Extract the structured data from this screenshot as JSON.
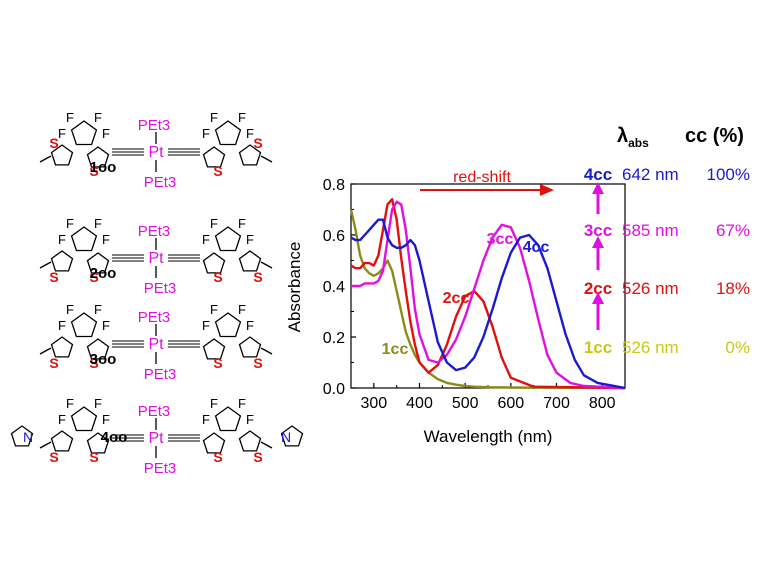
{
  "molecules": [
    {
      "label": "1oo",
      "pet3_top": "PEt3",
      "pet3_bottom": "PEt3",
      "pt": "Pt",
      "s_left": "S",
      "s_right": "S",
      "s_left2": "S",
      "s_right2": "S",
      "f": "F"
    },
    {
      "label": "2oo",
      "pet3_top": "PEt3",
      "pet3_bottom": "PEt3",
      "pt": "Pt",
      "s_left": "S",
      "s_right": "S",
      "s_left2": "S",
      "s_right2": "S",
      "f": "F"
    },
    {
      "label": "3oo",
      "pet3_top": "PEt3",
      "pet3_bottom": "PEt3",
      "pt": "Pt",
      "s_left": "S",
      "s_right": "S",
      "s_left2": "S",
      "s_right2": "S",
      "f": "F"
    },
    {
      "label": "4oo",
      "pet3_top": "PEt3",
      "pet3_bottom": "PEt3",
      "pt": "Pt",
      "s_left": "S",
      "s_right": "S",
      "s_left2": "S",
      "s_right2": "S",
      "f": "F",
      "n": "N"
    }
  ],
  "chart_data": {
    "type": "line",
    "xlabel": "Wavelength (nm)",
    "ylabel": "Absorbance",
    "xlim": [
      250,
      850
    ],
    "ylim": [
      0.0,
      0.8
    ],
    "xticks": [
      300,
      400,
      500,
      600,
      700,
      800
    ],
    "yticks": [
      "0.0",
      "0.2",
      "0.4",
      "0.6",
      "0.8"
    ],
    "grid": false,
    "annotation": "red-shift",
    "series": [
      {
        "name": "1cc",
        "color": "#8b8b1a",
        "x": [
          250,
          260,
          270,
          280,
          290,
          300,
          310,
          320,
          330,
          340,
          350,
          360,
          370,
          380,
          390,
          400,
          420,
          440,
          460,
          480,
          500,
          520,
          550,
          600,
          650,
          700,
          850
        ],
        "y": [
          0.7,
          0.62,
          0.52,
          0.47,
          0.45,
          0.44,
          0.45,
          0.47,
          0.5,
          0.46,
          0.38,
          0.3,
          0.22,
          0.17,
          0.13,
          0.1,
          0.06,
          0.035,
          0.02,
          0.013,
          0.008,
          0.005,
          0.003,
          0.002,
          0.001,
          0.001,
          0.0
        ]
      },
      {
        "name": "2cc",
        "color": "#e01010",
        "x": [
          250,
          260,
          270,
          280,
          290,
          300,
          310,
          320,
          330,
          340,
          350,
          360,
          370,
          380,
          390,
          400,
          420,
          440,
          460,
          480,
          500,
          520,
          540,
          560,
          580,
          600,
          650,
          850
        ],
        "y": [
          0.48,
          0.47,
          0.47,
          0.49,
          0.49,
          0.48,
          0.52,
          0.62,
          0.72,
          0.74,
          0.66,
          0.51,
          0.38,
          0.26,
          0.17,
          0.1,
          0.06,
          0.09,
          0.17,
          0.28,
          0.36,
          0.38,
          0.34,
          0.24,
          0.12,
          0.04,
          0.005,
          0.0
        ]
      },
      {
        "name": "3cc",
        "color": "#e010e0",
        "x": [
          250,
          260,
          270,
          280,
          290,
          300,
          310,
          320,
          330,
          340,
          350,
          360,
          370,
          380,
          390,
          400,
          420,
          440,
          460,
          480,
          500,
          520,
          540,
          560,
          580,
          600,
          620,
          640,
          660,
          680,
          700,
          730,
          760,
          850
        ],
        "y": [
          0.4,
          0.4,
          0.4,
          0.41,
          0.41,
          0.41,
          0.42,
          0.46,
          0.58,
          0.7,
          0.73,
          0.72,
          0.62,
          0.47,
          0.31,
          0.21,
          0.11,
          0.1,
          0.13,
          0.19,
          0.28,
          0.39,
          0.5,
          0.59,
          0.64,
          0.63,
          0.55,
          0.42,
          0.27,
          0.13,
          0.06,
          0.02,
          0.008,
          0.0
        ]
      },
      {
        "name": "4cc",
        "color": "#1a1ad0",
        "x": [
          250,
          260,
          270,
          280,
          290,
          300,
          310,
          320,
          330,
          340,
          350,
          360,
          370,
          380,
          390,
          400,
          420,
          440,
          460,
          480,
          500,
          520,
          540,
          560,
          580,
          600,
          620,
          640,
          660,
          680,
          700,
          720,
          740,
          760,
          790,
          820,
          850
        ],
        "y": [
          0.59,
          0.58,
          0.58,
          0.6,
          0.62,
          0.64,
          0.66,
          0.66,
          0.59,
          0.56,
          0.55,
          0.55,
          0.56,
          0.58,
          0.56,
          0.5,
          0.34,
          0.18,
          0.1,
          0.07,
          0.08,
          0.12,
          0.2,
          0.31,
          0.43,
          0.53,
          0.59,
          0.6,
          0.56,
          0.47,
          0.34,
          0.21,
          0.11,
          0.05,
          0.02,
          0.01,
          0.0
        ]
      }
    ],
    "curve_labels": [
      "1cc",
      "2cc",
      "3cc",
      "4cc"
    ]
  },
  "table": {
    "header_lambda": "λ",
    "header_lambda_sub": "abs",
    "header_cc": "cc (%)",
    "rows": [
      {
        "name": "4cc",
        "lambda": "642 nm",
        "cc": "100%",
        "name_color": "#1a1ad0",
        "val_color": "#1a1ad0"
      },
      {
        "name": "3cc",
        "lambda": "585 nm",
        "cc": "67%",
        "name_color": "#e010e0",
        "val_color": "#e010e0"
      },
      {
        "name": "2cc",
        "lambda": "526 nm",
        "cc": "18%",
        "name_color": "#e01010",
        "val_color": "#e01010"
      },
      {
        "name": "1cc",
        "lambda": "526 nm",
        "cc": "0%",
        "name_color": "#c8c81a",
        "val_color": "#c8c81a"
      }
    ]
  }
}
